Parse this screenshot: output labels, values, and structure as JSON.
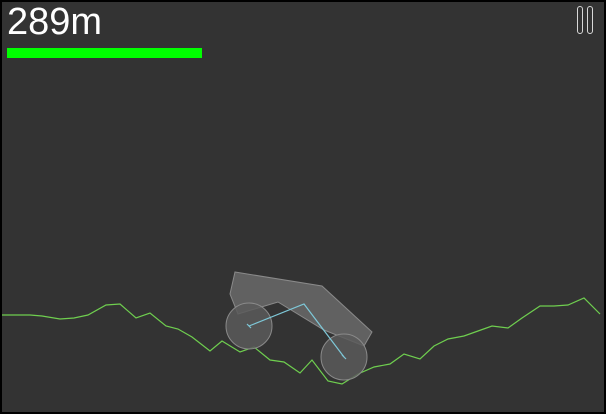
{
  "hud": {
    "distance_label": "289m",
    "fuel_level": 0.32,
    "fuel_color": "#00ff00",
    "pause_icon": "pause-icon"
  },
  "colors": {
    "background": "#333333",
    "terrain_line": "#6fcf4f",
    "car_body_fill": "#6a6a6a",
    "car_body_stroke": "#8a8a8a",
    "wheel_fill": "#5a5a5a",
    "wheel_stroke": "#8a8a8a",
    "suspension_line": "#7ec8d8"
  }
}
